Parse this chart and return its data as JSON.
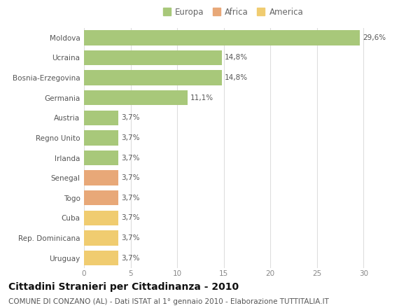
{
  "countries": [
    "Moldova",
    "Ucraina",
    "Bosnia-Erzegovina",
    "Germania",
    "Austria",
    "Regno Unito",
    "Irlanda",
    "Senegal",
    "Togo",
    "Cuba",
    "Rep. Dominicana",
    "Uruguay"
  ],
  "values": [
    29.6,
    14.8,
    14.8,
    11.1,
    3.7,
    3.7,
    3.7,
    3.7,
    3.7,
    3.7,
    3.7,
    3.7
  ],
  "labels": [
    "29,6%",
    "14,8%",
    "14,8%",
    "11,1%",
    "3,7%",
    "3,7%",
    "3,7%",
    "3,7%",
    "3,7%",
    "3,7%",
    "3,7%",
    "3,7%"
  ],
  "continents": [
    "Europa",
    "Europa",
    "Europa",
    "Europa",
    "Europa",
    "Europa",
    "Europa",
    "Africa",
    "Africa",
    "America",
    "America",
    "America"
  ],
  "colors": {
    "Europa": "#a8c87a",
    "Africa": "#e8a878",
    "America": "#f0cc70"
  },
  "xlim": [
    0,
    32
  ],
  "xticks": [
    0,
    5,
    10,
    15,
    20,
    25,
    30
  ],
  "title": "Cittadini Stranieri per Cittadinanza - 2010",
  "subtitle": "COMUNE DI CONZANO (AL) - Dati ISTAT al 1° gennaio 2010 - Elaborazione TUTTITALIA.IT",
  "background_color": "#ffffff",
  "grid_color": "#dddddd",
  "bar_height": 0.75,
  "title_fontsize": 10,
  "subtitle_fontsize": 7.5,
  "label_fontsize": 7.5,
  "tick_fontsize": 7.5,
  "legend_fontsize": 8.5
}
